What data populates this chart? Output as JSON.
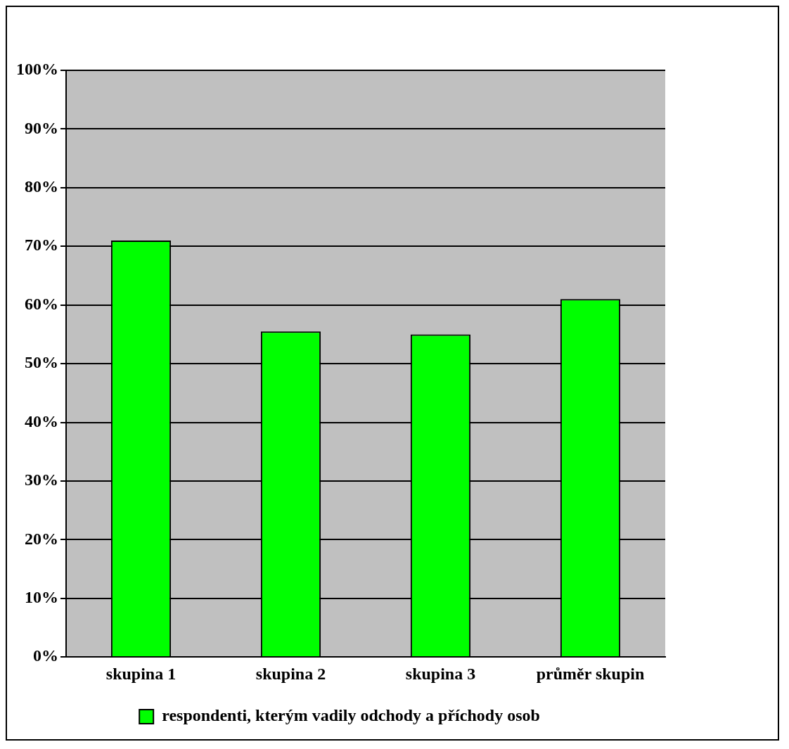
{
  "chart_data": {
    "type": "bar",
    "categories": [
      "skupina 1",
      "skupina 2",
      "skupina 3",
      "průměr skupin"
    ],
    "series": [
      {
        "name": "respondenti, kterým vadily odchody a příchody osob",
        "color": "#00ff00",
        "values": [
          71,
          55.5,
          55,
          61
        ]
      }
    ],
    "ylim": [
      0,
      100
    ],
    "yticks": [
      {
        "value": 0,
        "label": "0%"
      },
      {
        "value": 10,
        "label": "10%"
      },
      {
        "value": 20,
        "label": "20%"
      },
      {
        "value": 30,
        "label": "30%"
      },
      {
        "value": 40,
        "label": "40%"
      },
      {
        "value": 50,
        "label": "50%"
      },
      {
        "value": 60,
        "label": "60%"
      },
      {
        "value": 70,
        "label": "70%"
      },
      {
        "value": 80,
        "label": "80%"
      },
      {
        "value": 90,
        "label": "90%"
      },
      {
        "value": 100,
        "label": "100%"
      }
    ],
    "grid": "y",
    "legend": "bottom"
  }
}
